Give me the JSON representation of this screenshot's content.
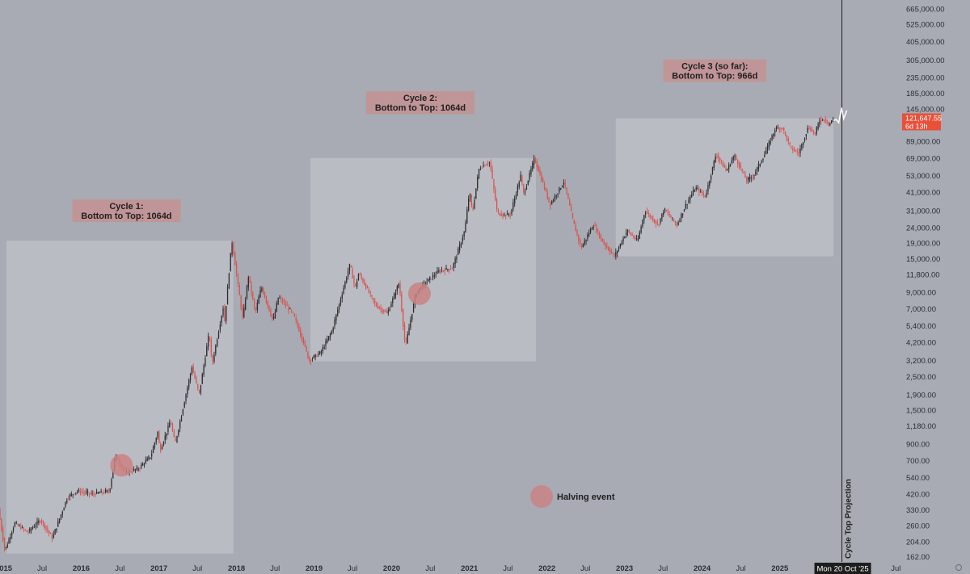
{
  "chart_data": {
    "type": "candlestick",
    "y_scale": "log",
    "ylim": [
      150,
      760000
    ],
    "xlim": [
      "2014-12-15",
      "2026-07-15"
    ],
    "y_tick_labels": [
      "665,000.00",
      "525,000.00",
      "405,000.00",
      "305,000.00",
      "235,000.00",
      "185,000.00",
      "145,000.00",
      "89,000.00",
      "69,000.00",
      "53,000.00",
      "41,000.00",
      "31,000.00",
      "24,000.00",
      "19,000.00",
      "15,000.00",
      "11,800.00",
      "9,000.00",
      "7,000.00",
      "5,400.00",
      "4,200.00",
      "3,200.00",
      "2,500.00",
      "1,900.00",
      "1,500.00",
      "1,180.00",
      "900.00",
      "700.00",
      "540.00",
      "420.00",
      "330.00",
      "260.00",
      "204.00",
      "162.00"
    ],
    "x_tick_labels": [
      {
        "label": "2015",
        "date": "2015-01-01",
        "year": true
      },
      {
        "label": "Jul",
        "date": "2015-07-01",
        "year": false
      },
      {
        "label": "2016",
        "date": "2016-01-01",
        "year": true
      },
      {
        "label": "Jul",
        "date": "2016-07-01",
        "year": false
      },
      {
        "label": "2017",
        "date": "2017-01-01",
        "year": true
      },
      {
        "label": "Jul",
        "date": "2017-07-01",
        "year": false
      },
      {
        "label": "2018",
        "date": "2018-01-01",
        "year": true
      },
      {
        "label": "Jul",
        "date": "2018-07-01",
        "year": false
      },
      {
        "label": "2019",
        "date": "2019-01-01",
        "year": true
      },
      {
        "label": "Jul",
        "date": "2019-07-01",
        "year": false
      },
      {
        "label": "2020",
        "date": "2020-01-01",
        "year": true
      },
      {
        "label": "Jul",
        "date": "2020-07-01",
        "year": false
      },
      {
        "label": "2021",
        "date": "2021-01-01",
        "year": true
      },
      {
        "label": "Jul",
        "date": "2021-07-01",
        "year": false
      },
      {
        "label": "2022",
        "date": "2022-01-01",
        "year": true
      },
      {
        "label": "Jul",
        "date": "2022-07-01",
        "year": false
      },
      {
        "label": "2023",
        "date": "2023-01-01",
        "year": true
      },
      {
        "label": "Jul",
        "date": "2023-07-01",
        "year": false
      },
      {
        "label": "2024",
        "date": "2024-01-01",
        "year": true
      },
      {
        "label": "Jul",
        "date": "2024-07-01",
        "year": false
      },
      {
        "label": "2025",
        "date": "2025-01-01",
        "year": true
      },
      {
        "label": "Jul",
        "date": "2026-07-01",
        "year": false
      }
    ],
    "price_path": [
      [
        "2014-12-15",
        330
      ],
      [
        "2015-01-14",
        178
      ],
      [
        "2015-03-01",
        270
      ],
      [
        "2015-05-01",
        235
      ],
      [
        "2015-07-01",
        285
      ],
      [
        "2015-08-25",
        215
      ],
      [
        "2015-11-04",
        400
      ],
      [
        "2015-12-20",
        440
      ],
      [
        "2016-03-01",
        420
      ],
      [
        "2016-05-20",
        440
      ],
      [
        "2016-06-17",
        760
      ],
      [
        "2016-08-01",
        580
      ],
      [
        "2016-10-01",
        615
      ],
      [
        "2016-12-01",
        750
      ],
      [
        "2017-01-04",
        1100
      ],
      [
        "2017-01-12",
        800
      ],
      [
        "2017-03-03",
        1280
      ],
      [
        "2017-03-25",
        900
      ],
      [
        "2017-06-12",
        2900
      ],
      [
        "2017-07-16",
        1900
      ],
      [
        "2017-09-01",
        4900
      ],
      [
        "2017-09-15",
        3000
      ],
      [
        "2017-11-08",
        7400
      ],
      [
        "2017-11-12",
        5600
      ],
      [
        "2017-12-17",
        19700
      ],
      [
        "2018-02-06",
        6000
      ],
      [
        "2018-03-05",
        11500
      ],
      [
        "2018-04-06",
        6600
      ],
      [
        "2018-05-05",
        9800
      ],
      [
        "2018-06-29",
        5800
      ],
      [
        "2018-07-24",
        8400
      ],
      [
        "2018-10-01",
        6500
      ],
      [
        "2018-11-20",
        4200
      ],
      [
        "2018-12-15",
        3200
      ],
      [
        "2019-02-08",
        3600
      ],
      [
        "2019-04-02",
        5000
      ],
      [
        "2019-06-26",
        13800
      ],
      [
        "2019-07-20",
        9500
      ],
      [
        "2019-08-06",
        12000
      ],
      [
        "2019-10-25",
        7400
      ],
      [
        "2019-12-18",
        6500
      ],
      [
        "2020-02-12",
        10400
      ],
      [
        "2020-03-12",
        3900
      ],
      [
        "2020-04-30",
        8800
      ],
      [
        "2020-06-01",
        10000
      ],
      [
        "2020-08-17",
        12400
      ],
      [
        "2020-10-20",
        13000
      ],
      [
        "2020-12-17",
        23000
      ],
      [
        "2021-01-08",
        41900
      ],
      [
        "2021-01-22",
        30000
      ],
      [
        "2021-02-21",
        58000
      ],
      [
        "2021-03-13",
        61700
      ],
      [
        "2021-04-14",
        64800
      ],
      [
        "2021-05-19",
        30000
      ],
      [
        "2021-06-22",
        29000
      ],
      [
        "2021-07-20",
        29500
      ],
      [
        "2021-09-06",
        52800
      ],
      [
        "2021-09-21",
        40000
      ],
      [
        "2021-11-10",
        69000
      ],
      [
        "2022-01-22",
        34000
      ],
      [
        "2022-03-29",
        48200
      ],
      [
        "2022-05-12",
        26000
      ],
      [
        "2022-06-18",
        17600
      ],
      [
        "2022-08-14",
        25200
      ],
      [
        "2022-10-01",
        19000
      ],
      [
        "2022-11-21",
        15500
      ],
      [
        "2023-01-20",
        23000
      ],
      [
        "2023-03-10",
        19500
      ],
      [
        "2023-04-14",
        31000
      ],
      [
        "2023-06-15",
        25000
      ],
      [
        "2023-07-13",
        31800
      ],
      [
        "2023-09-11",
        25000
      ],
      [
        "2023-10-24",
        34000
      ],
      [
        "2023-12-08",
        44000
      ],
      [
        "2024-01-23",
        38500
      ],
      [
        "2024-03-14",
        73700
      ],
      [
        "2024-05-01",
        56500
      ],
      [
        "2024-06-07",
        71900
      ],
      [
        "2024-08-05",
        49000
      ],
      [
        "2024-09-06",
        53000
      ],
      [
        "2024-10-29",
        73500
      ],
      [
        "2024-12-17",
        108000
      ],
      [
        "2025-01-20",
        109000
      ],
      [
        "2025-02-28",
        80000
      ],
      [
        "2025-04-07",
        74500
      ],
      [
        "2025-05-22",
        111000
      ],
      [
        "2025-06-22",
        99000
      ],
      [
        "2025-07-14",
        123000
      ],
      [
        "2025-08-14",
        124000
      ],
      [
        "2025-08-25",
        113500
      ],
      [
        "2025-09-10",
        121647.55
      ]
    ],
    "cycle_boxes": [
      {
        "from": "2015-01-14",
        "to": "2017-12-17",
        "low": 170,
        "high": 19700
      },
      {
        "from": "2018-12-15",
        "to": "2021-11-10",
        "low": 3150,
        "high": 69000
      },
      {
        "from": "2022-11-21",
        "to": "2025-09-10",
        "low": 15500,
        "high": 126000
      }
    ],
    "halving_events": [
      {
        "date": "2016-07-09",
        "price": 650
      },
      {
        "date": "2020-05-11",
        "price": 8800
      }
    ],
    "projection": {
      "date": "2025-10-20",
      "label": "Cycle Top Projection",
      "path": [
        [
          "2025-09-10",
          121647.55
        ],
        [
          "2025-09-22",
          124000
        ],
        [
          "2025-10-05",
          118000
        ],
        [
          "2025-10-18",
          148000
        ],
        [
          "2025-10-28",
          125000
        ],
        [
          "2025-11-12",
          142000
        ]
      ]
    },
    "annotations": [
      {
        "lines": [
          "Cycle 1:",
          "Bottom to Top: 1064d"
        ],
        "date": "2016-08-01",
        "price": 31000
      },
      {
        "lines": [
          "Cycle 2:",
          "Bottom to Top: 1064d"
        ],
        "date": "2020-05-15",
        "price": 160000
      },
      {
        "lines": [
          "Cycle 3 (so far):",
          "Bottom to Top: 966d"
        ],
        "date": "2024-03-01",
        "price": 260000
      }
    ],
    "legend": {
      "label": "Halving event",
      "placement": "bottom-center"
    },
    "last_price": {
      "value": "121,647.55",
      "countdown": "6d 13h",
      "price": 121647.55
    },
    "crosshair_date_label": "Mon 20 Oct '25"
  },
  "colors": {
    "background": "#a8abb3",
    "cycle_box": "#bbbec5",
    "candle_up": "#2b2b2b",
    "candle_down": "#d9534f",
    "halving": "#c98383",
    "annotation_bg": "#c29294",
    "price_tag": "#e8503a",
    "projection_line": "#1f1f1f",
    "projection_path": "#ffffff",
    "axis_text": "#2b2d33",
    "date_tag_bg": "#1d1d1d"
  }
}
